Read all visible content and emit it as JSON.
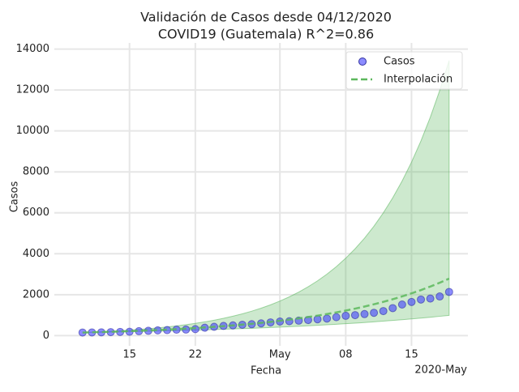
{
  "chart_data": {
    "type": "scatter-fit",
    "title": "Validación de Casos desde 04/12/2020",
    "subtitle": "COVID19 (Guatemala) R^2=0.86",
    "x_label": "Fecha",
    "y_label": "Casos",
    "x_offset_label": "2020-May",
    "x": [
      "2020-04-10",
      "2020-04-11",
      "2020-04-12",
      "2020-04-13",
      "2020-04-14",
      "2020-04-15",
      "2020-04-16",
      "2020-04-17",
      "2020-04-18",
      "2020-04-19",
      "2020-04-20",
      "2020-04-21",
      "2020-04-22",
      "2020-04-23",
      "2020-04-24",
      "2020-04-25",
      "2020-04-26",
      "2020-04-27",
      "2020-04-28",
      "2020-04-29",
      "2020-04-30",
      "2020-05-01",
      "2020-05-02",
      "2020-05-03",
      "2020-05-04",
      "2020-05-05",
      "2020-05-06",
      "2020-05-07",
      "2020-05-08",
      "2020-05-09",
      "2020-05-10",
      "2020-05-11",
      "2020-05-12",
      "2020-05-13",
      "2020-05-14",
      "2020-05-15",
      "2020-05-16",
      "2020-05-17",
      "2020-05-18",
      "2020-05-19"
    ],
    "series": [
      {
        "name": "Casos",
        "color": "#4040ff",
        "kind": "scatter",
        "values": [
          150,
          155,
          160,
          170,
          180,
          190,
          215,
          235,
          257,
          270,
          289,
          294,
          316,
          385,
          430,
          473,
          500,
          530,
          557,
          599,
          644,
          688,
          703,
          730,
          763,
          798,
          832,
          900,
          967,
          1000,
          1052,
          1114,
          1199,
          1342,
          1518,
          1643,
          1763,
          1809,
          1912,
          2133
        ]
      },
      {
        "name": "Interpolación",
        "color": "#5cb85c",
        "kind": "line",
        "values": [
          150,
          162,
          174,
          188,
          202,
          218,
          235,
          254,
          273,
          295,
          318,
          342,
          369,
          398,
          429,
          462,
          498,
          537,
          579,
          624,
          672,
          725,
          781,
          841,
          907,
          977,
          1053,
          1135,
          1223,
          1318,
          1420,
          1530,
          1649,
          1777,
          1915,
          2064,
          2224,
          2397,
          2583,
          2783
        ]
      }
    ],
    "band": {
      "color": "#4caf50",
      "lower": [
        150,
        157,
        165,
        173,
        182,
        191,
        200,
        210,
        221,
        232,
        243,
        255,
        268,
        281,
        295,
        310,
        325,
        341,
        358,
        376,
        395,
        414,
        435,
        456,
        479,
        502,
        527,
        553,
        581,
        610,
        640,
        671,
        705,
        740,
        776,
        815,
        855,
        897,
        942,
        988
      ],
      "upper": [
        150,
        168,
        189,
        212,
        238,
        267,
        299,
        336,
        377,
        423,
        475,
        533,
        598,
        671,
        753,
        845,
        948,
        1064,
        1194,
        1340,
        1504,
        1688,
        1894,
        2125,
        2385,
        2676,
        3003,
        3370,
        3782,
        4244,
        4762,
        5344,
        5997,
        6730,
        7552,
        8475,
        9510,
        10672,
        11976,
        13439
      ]
    },
    "xlim": [
      "2020-04-07",
      "2020-05-21"
    ],
    "xticks": [
      {
        "value": "2020-04-15",
        "label": "15"
      },
      {
        "value": "2020-04-22",
        "label": "22"
      },
      {
        "value": "2020-05-01",
        "label": "May"
      },
      {
        "value": "2020-05-08",
        "label": "08"
      },
      {
        "value": "2020-05-15",
        "label": "15"
      }
    ],
    "ylim": [
      -500,
      14300
    ],
    "yticks": [
      0,
      2000,
      4000,
      6000,
      8000,
      10000,
      12000,
      14000
    ],
    "grid": true,
    "legend": "upper right"
  }
}
